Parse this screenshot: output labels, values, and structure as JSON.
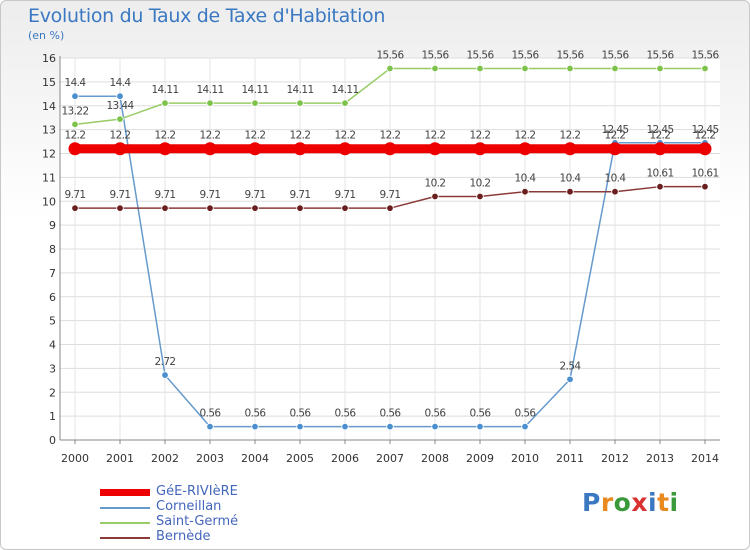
{
  "title": "Evolution du Taux de Taxe d'Habitation",
  "subtitle": "(en %)",
  "logo": {
    "text": "Proxiti",
    "letters": [
      {
        "ch": "P",
        "color": "#3a78c2"
      },
      {
        "ch": "r",
        "color": "#e88a20"
      },
      {
        "ch": "o",
        "color": "#3a9a3a"
      },
      {
        "ch": "x",
        "color": "#d93030"
      },
      {
        "ch": "i",
        "color": "#3a78c2"
      },
      {
        "ch": "t",
        "color": "#e88a20"
      },
      {
        "ch": "i",
        "color": "#3a9a3a"
      }
    ]
  },
  "chart_data": {
    "type": "line",
    "title": "Evolution du Taux de Taxe d'Habitation",
    "ylabel": "(en %)",
    "xlabel": "",
    "ylim": [
      0,
      16
    ],
    "yticks": [
      0,
      1,
      2,
      3,
      4,
      5,
      6,
      7,
      8,
      9,
      10,
      11,
      12,
      13,
      14,
      15,
      16
    ],
    "grid": true,
    "categories": [
      "2000",
      "2001",
      "2002",
      "2003",
      "2004",
      "2005",
      "2006",
      "2007",
      "2008",
      "2009",
      "2010",
      "2011",
      "2012",
      "2013",
      "2014"
    ],
    "series": [
      {
        "name": "GéE-RIVIèRE",
        "color": "#ee0000",
        "thick": true,
        "values": [
          12.2,
          12.2,
          12.2,
          12.2,
          12.2,
          12.2,
          12.2,
          12.2,
          12.2,
          12.2,
          12.2,
          12.2,
          12.2,
          12.2,
          12.2
        ],
        "labels": [
          "12.2",
          "12.2",
          "12.2",
          "12.2",
          "12.2",
          "12.2",
          "12.2",
          "12.2",
          "12.2",
          "12.2",
          "12.2",
          "12.2",
          "12.2",
          "12.2",
          "12.2"
        ]
      },
      {
        "name": "Corneillan",
        "color": "#6699cc",
        "dot": "#4a8fd0",
        "values": [
          14.4,
          14.4,
          2.72,
          0.56,
          0.56,
          0.56,
          0.56,
          0.56,
          0.56,
          0.56,
          0.56,
          2.54,
          12.45,
          12.45,
          12.45
        ],
        "labels": [
          "14.4",
          "14.4",
          "2.72",
          "0.56",
          "0.56",
          "0.56",
          "0.56",
          "0.56",
          "0.56",
          "0.56",
          "0.56",
          "2.54",
          "12.45",
          "12.45",
          "12.45"
        ]
      },
      {
        "name": "Saint-Germé",
        "color": "#99cc66",
        "dot": "#7dc24a",
        "values": [
          13.22,
          13.44,
          14.11,
          14.11,
          14.11,
          14.11,
          14.11,
          15.56,
          15.56,
          15.56,
          15.56,
          15.56,
          15.56,
          15.56,
          15.56
        ],
        "labels": [
          "13.22",
          "13.44",
          "14.11",
          "14.11",
          "14.11",
          "14.11",
          "14.11",
          "15.56",
          "15.56",
          "15.56",
          "15.56",
          "15.56",
          "15.56",
          "15.56",
          "15.56"
        ]
      },
      {
        "name": "Bernède",
        "color": "#8b3a3a",
        "dot": "#6b1e1e",
        "values": [
          9.71,
          9.71,
          9.71,
          9.71,
          9.71,
          9.71,
          9.71,
          9.71,
          10.2,
          10.2,
          10.4,
          10.4,
          10.4,
          10.61,
          10.61
        ],
        "labels": [
          "9.71",
          "9.71",
          "9.71",
          "9.71",
          "9.71",
          "9.71",
          "9.71",
          "9.71",
          "10.2",
          "10.2",
          "10.4",
          "10.4",
          "10.4",
          "10.61",
          "10.61"
        ]
      }
    ],
    "legend_position": "bottom-left"
  }
}
